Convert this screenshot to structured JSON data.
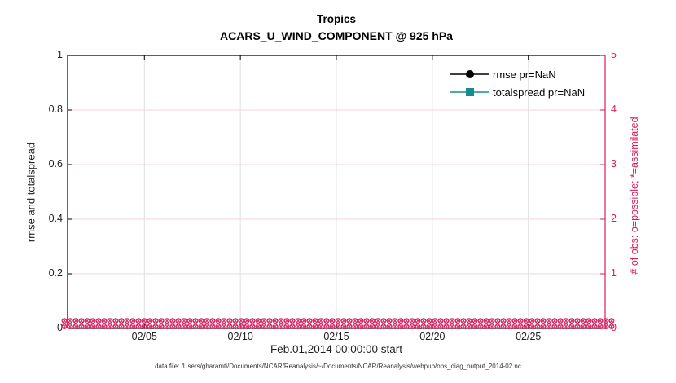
{
  "figure": {
    "title": "Tropics",
    "subtitle": "ACARS_U_WIND_COMPONENT @ 925 hPa",
    "footer": "data file: /Users/gharamti/Documents/NCAR/Reanalysis/~/Documents/NCAR/Reanalysis/webpub/obs_diag_output_2014-02.nc"
  },
  "axes": {
    "left": {
      "label": "rmse and totalspread",
      "ticks": [
        "0",
        "0.2",
        "0.4",
        "0.6",
        "0.8",
        "1"
      ]
    },
    "right": {
      "label": "# of obs: o=possible; *=assimilated",
      "ticks": [
        "0",
        "1",
        "2",
        "3",
        "4",
        "5"
      ]
    },
    "x": {
      "label": "Feb.01,2014 00:00:00 start",
      "ticks": [
        "02/05",
        "02/10",
        "02/15",
        "02/20",
        "02/25"
      ]
    }
  },
  "legend": {
    "items": [
      {
        "label": "rmse pr=NaN",
        "color": "#000000",
        "marker": "circle"
      },
      {
        "label": "totalspread pr=NaN",
        "color": "#178B8F",
        "marker": "square"
      }
    ]
  },
  "colors": {
    "pink": "#D91C5C",
    "teal": "#178B8F",
    "grid_horizontal": "#F7D3E0",
    "grid_vertical": "#E0E0E0",
    "axis_text": "#1f1f1f",
    "black": "#000000"
  },
  "chart_data": {
    "type": "line",
    "title": "Tropics",
    "subtitle": "ACARS_U_WIND_COMPONENT @ 925 hPa",
    "xlabel": "Feb.01,2014 00:00:00 start",
    "x_ticks": [
      "02/05",
      "02/10",
      "02/15",
      "02/20",
      "02/25"
    ],
    "x_range": [
      "2014-02-01 00:00:00",
      "2014-03-01 00:00:00"
    ],
    "grid": true,
    "legend_position": "upper-right-inside, no box",
    "left_axis": {
      "label": "rmse and totalspread",
      "ylim": [
        0,
        1
      ],
      "ticks": [
        0,
        0.2,
        0.4,
        0.6,
        0.8,
        1
      ]
    },
    "right_axis": {
      "label": "# of obs: o=possible; *=assimilated",
      "ylim": [
        0,
        5
      ],
      "ticks": [
        0,
        1,
        2,
        3,
        4,
        5
      ]
    },
    "series": [
      {
        "name": "rmse pr=NaN",
        "axis": "left",
        "color": "#000000",
        "marker": "filled-circle",
        "values": null,
        "note": "all values NaN - no curve drawn"
      },
      {
        "name": "totalspread pr=NaN",
        "axis": "left",
        "color": "#178B8F",
        "marker": "filled-square",
        "values": null,
        "note": "all values NaN - no curve drawn"
      },
      {
        "name": "observations possible",
        "axis": "right",
        "color": "#D91C5C",
        "marker": "o",
        "constant_value": 0,
        "n_bins": 112,
        "note": "dense row of circle markers at y=0 across whole x range"
      },
      {
        "name": "observations assimilated",
        "axis": "right",
        "color": "#D91C5C",
        "marker": "x",
        "constant_value": 0,
        "n_bins": 112,
        "note": "dense row of x markers at y=0 across whole x range"
      }
    ]
  }
}
